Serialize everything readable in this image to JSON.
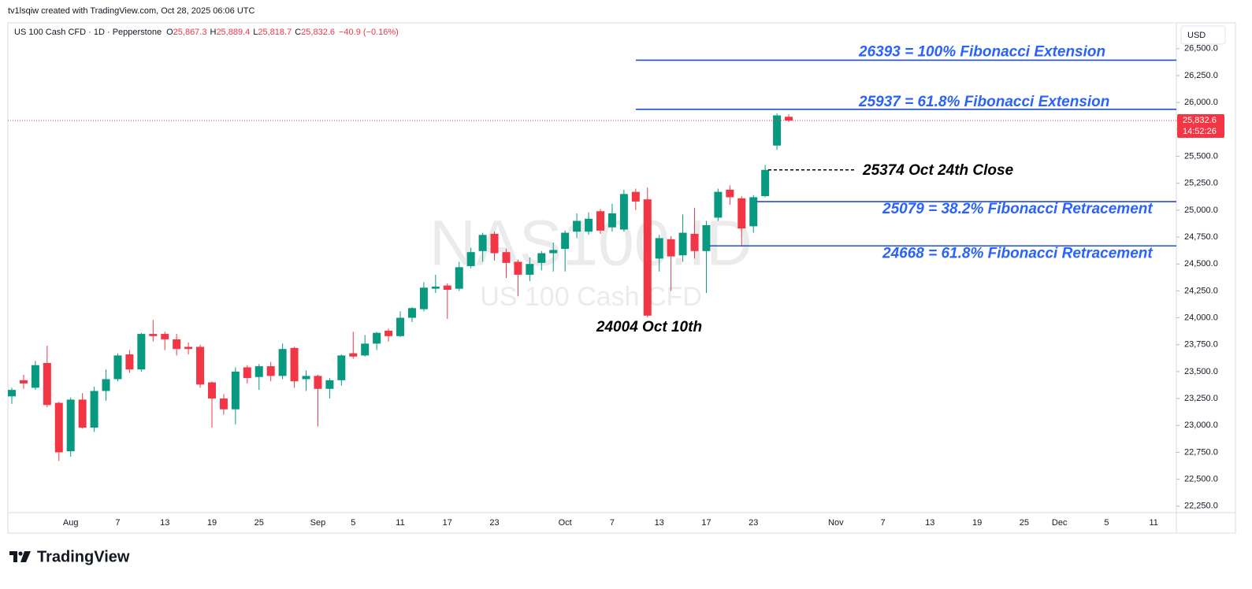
{
  "chart_data": {
    "type": "candlestick",
    "title": "tv1lsqiw created with TradingView.com, Oct 28, 2025 06:06 UTC",
    "symbol": "US 100 Cash CFD · 1D · Pepperstone",
    "legend_ohlc": [
      {
        "key": "O",
        "value": "25,867.3"
      },
      {
        "key": "H",
        "value": "25,889.4"
      },
      {
        "key": "L",
        "value": "25,818.7"
      },
      {
        "key": "C",
        "value": "25,832.6"
      }
    ],
    "change": "−40.9 (−0.16%)",
    "watermark": "NAS100.ID",
    "watermark_subtitle": "US 100 Cash CFD",
    "currency": "USD",
    "brand": "TradingView",
    "up_color": "#089981",
    "down_color": "#f23645",
    "categories": [
      null,
      null,
      null,
      null,
      null,
      "Aug",
      null,
      null,
      null,
      "7",
      null,
      null,
      null,
      "13",
      null,
      null,
      null,
      "19",
      null,
      null,
      null,
      "25",
      null,
      null,
      null,
      null,
      "Sep",
      null,
      null,
      "5",
      null,
      null,
      null,
      "11",
      null,
      null,
      null,
      "17",
      null,
      null,
      null,
      "23",
      null,
      null,
      null,
      null,
      null,
      "Oct",
      null,
      null,
      null,
      "7",
      null,
      null,
      null,
      "13",
      null,
      null,
      null,
      "17",
      null,
      null,
      null,
      "23",
      null,
      null,
      null
    ],
    "future_categories": [
      null,
      null,
      null,
      "Nov",
      null,
      null,
      null,
      "7",
      null,
      null,
      null,
      "13",
      null,
      null,
      null,
      "19",
      null,
      null,
      null,
      "25",
      null,
      null,
      "Dec",
      null,
      null,
      null,
      "5",
      null,
      null,
      null,
      "11",
      null,
      null
    ],
    "open": [
      23270,
      23420,
      23350,
      23580,
      23210,
      22760,
      23240,
      22980,
      23320,
      23430,
      23660,
      23520,
      23850,
      23850,
      23800,
      23730,
      23730,
      23400,
      23250,
      23150,
      23540,
      23450,
      23550,
      23460,
      23720,
      23430,
      23460,
      23340,
      23420,
      23670,
      23650,
      23760,
      23880,
      23830,
      24000,
      24080,
      24270,
      24300,
      24270,
      24480,
      24620,
      24780,
      24610,
      24520,
      24400,
      24510,
      24600,
      24640,
      24800,
      24800,
      24990,
      24840,
      24820,
      25170,
      25100,
      24550,
      24730,
      24580,
      24780,
      24620,
      24930,
      25190,
      25110,
      24850,
      25130,
      25600,
      25867.3
    ],
    "high": [
      23350,
      23470,
      23600,
      23740,
      23220,
      23260,
      23300,
      23360,
      23520,
      23670,
      23700,
      23860,
      23980,
      23870,
      23850,
      23770,
      23750,
      23410,
      23290,
      23540,
      23560,
      23570,
      23590,
      23760,
      23730,
      23510,
      23470,
      23440,
      23660,
      23870,
      23840,
      23870,
      23900,
      24060,
      24100,
      24330,
      24400,
      24320,
      24520,
      24650,
      24790,
      24800,
      24640,
      24540,
      24560,
      24620,
      24700,
      24810,
      24970,
      24980,
      25010,
      25060,
      25190,
      25200,
      25210,
      24770,
      24760,
      24960,
      25020,
      24900,
      25200,
      25230,
      25130,
      25140,
      25420,
      25900,
      25889.4
    ],
    "low": [
      23200,
      23340,
      23330,
      23170,
      22670,
      22710,
      22970,
      22940,
      23230,
      23410,
      23490,
      23500,
      23780,
      23700,
      23650,
      23660,
      23350,
      22980,
      23100,
      23010,
      23390,
      23330,
      23410,
      23430,
      23350,
      23320,
      22990,
      23250,
      23370,
      23620,
      23640,
      23700,
      23780,
      23820,
      23960,
      24060,
      24230,
      23990,
      24250,
      24460,
      24520,
      24530,
      24370,
      24200,
      24340,
      24440,
      24430,
      24430,
      24740,
      24770,
      24780,
      24800,
      24800,
      25000,
      24004,
      24430,
      24250,
      24520,
      24550,
      24230,
      24900,
      25050,
      24660,
      24790,
      25120,
      25560,
      25818.7
    ],
    "close": [
      23330,
      23390,
      23560,
      23190,
      22750,
      23240,
      22980,
      23320,
      23430,
      23650,
      23520,
      23850,
      23830,
      23800,
      23710,
      23710,
      23380,
      23250,
      23150,
      23500,
      23440,
      23550,
      23460,
      23710,
      23410,
      23460,
      23340,
      23420,
      23650,
      23640,
      23760,
      23860,
      23830,
      24000,
      24090,
      24280,
      24290,
      24260,
      24470,
      24610,
      24770,
      24600,
      24510,
      24400,
      24500,
      24600,
      24630,
      24790,
      24900,
      24920,
      24810,
      24970,
      25150,
      25080,
      24020,
      24740,
      24570,
      24790,
      24620,
      24860,
      25170,
      25120,
      24830,
      25120,
      25374,
      25880,
      25832.6
    ],
    "last_price_label": "25,832.6",
    "countdown": "14:52:26",
    "ylim": [
      22190,
      26740
    ],
    "yticks": [
      {
        "value": 22250,
        "label": "22,250.0"
      },
      {
        "value": 22500,
        "label": "22,500.0"
      },
      {
        "value": 22750,
        "label": "22,750.0"
      },
      {
        "value": 23000,
        "label": "23,000.0"
      },
      {
        "value": 23250,
        "label": "23,250.0"
      },
      {
        "value": 23500,
        "label": "23,500.0"
      },
      {
        "value": 23750,
        "label": "23,750.0"
      },
      {
        "value": 24000,
        "label": "24,000.0"
      },
      {
        "value": 24250,
        "label": "24,250.0"
      },
      {
        "value": 24500,
        "label": "24,500.0"
      },
      {
        "value": 24750,
        "label": "24,750.0"
      },
      {
        "value": 25000,
        "label": "25,000.0"
      },
      {
        "value": 25250,
        "label": "25,250.0"
      },
      {
        "value": 25500,
        "label": "25,500.0"
      },
      {
        "value": 25750,
        "label": "25,750.0"
      },
      {
        "value": 26000,
        "label": "26,000.0"
      },
      {
        "value": 26250,
        "label": "26,250.0"
      },
      {
        "value": 26500,
        "label": "26,500.0"
      }
    ],
    "fib_levels": [
      {
        "value": 26393,
        "label": "26393 = 100% Fibonacci Extension"
      },
      {
        "value": 25937,
        "label": "25937 = 61.8% Fibonacci Extension"
      },
      {
        "value": 25079,
        "label": "25079 = 38.2% Fibonacci Retracement"
      },
      {
        "value": 24668,
        "label": "24668 = 61.8% Fibonacci Retracement"
      }
    ],
    "close_marker": {
      "value": 25374,
      "label": "25374 Oct 24th Close"
    },
    "low_marker": {
      "value": 24004,
      "label": "24004 Oct 10th"
    }
  }
}
